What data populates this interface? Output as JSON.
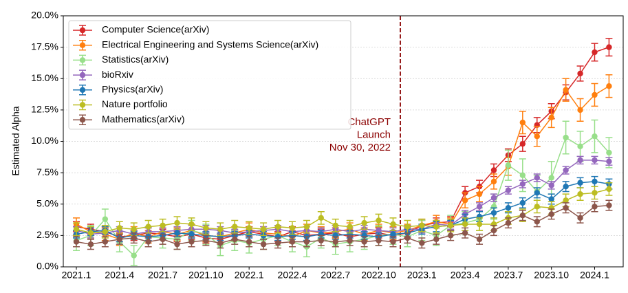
{
  "chart_data": {
    "type": "line",
    "ylabel": "Estimated Alpha",
    "annotation": [
      "ChatGPT",
      "Launch",
      "Nov 30, 2022"
    ],
    "categories": [
      "2021.1",
      null,
      null,
      "2021.4",
      null,
      null,
      "2021.7",
      null,
      null,
      "2021.10",
      null,
      null,
      "2022.1",
      null,
      null,
      "2022.4",
      null,
      null,
      "2022.7",
      null,
      null,
      "2022.10",
      null,
      null,
      "2023.1",
      null,
      null,
      "2023.4",
      null,
      null,
      "2023.7",
      null,
      null,
      "2023.10",
      null,
      null,
      "2024.1",
      null
    ],
    "ylim": [
      0,
      20
    ],
    "yticks": [
      {
        "value": 0,
        "label": "0.0%"
      },
      {
        "value": 2.5,
        "label": "2.5%"
      },
      {
        "value": 5,
        "label": "5.0%"
      },
      {
        "value": 7.5,
        "label": "7.5%"
      },
      {
        "value": 10,
        "label": "10.0%"
      },
      {
        "value": 12.5,
        "label": "12.5%"
      },
      {
        "value": 15,
        "label": "15.0%"
      },
      {
        "value": 17.5,
        "label": "17.5%"
      },
      {
        "value": 20,
        "label": "20.0%"
      }
    ],
    "grid": true,
    "legend": "upper left",
    "series": [
      {
        "name": "Computer Science(arXiv)",
        "color": "#d62728",
        "values": [
          3.2,
          3.0,
          2.8,
          2.4,
          2.5,
          2.7,
          2.6,
          2.4,
          2.6,
          2.3,
          2.2,
          2.5,
          2.8,
          2.6,
          2.4,
          2.8,
          2.5,
          2.6,
          2.7,
          2.4,
          2.6,
          2.7,
          2.5,
          2.7,
          3.3,
          3.5,
          3.6,
          5.9,
          6.4,
          7.7,
          8.9,
          9.8,
          11.3,
          12.4,
          13.9,
          15.4,
          17.1,
          17.5
        ],
        "errors": [
          0.4,
          0.4,
          0.4,
          0.4,
          0.4,
          0.4,
          0.4,
          0.4,
          0.4,
          0.4,
          0.4,
          0.4,
          0.4,
          0.4,
          0.4,
          0.4,
          0.4,
          0.4,
          0.4,
          0.4,
          0.4,
          0.4,
          0.4,
          0.4,
          0.4,
          0.4,
          0.4,
          0.5,
          0.5,
          0.5,
          0.5,
          0.6,
          0.6,
          0.6,
          0.6,
          0.6,
          0.7,
          0.7
        ]
      },
      {
        "name": "Electrical Engineering and Systems Science(arXiv)",
        "color": "#ff7f0e",
        "values": [
          3.4,
          2.8,
          2.6,
          2.2,
          2.7,
          2.4,
          2.8,
          2.6,
          2.9,
          2.5,
          2.4,
          2.7,
          3.0,
          2.7,
          2.6,
          2.4,
          2.9,
          2.7,
          2.8,
          3.0,
          2.6,
          2.9,
          2.7,
          2.9,
          3.3,
          3.6,
          3.4,
          5.3,
          5.8,
          6.8,
          8.0,
          11.5,
          10.4,
          11.9,
          14.1,
          12.5,
          13.7,
          14.4
        ],
        "errors": [
          0.5,
          0.5,
          0.5,
          0.5,
          0.5,
          0.5,
          0.5,
          0.5,
          0.5,
          0.5,
          0.5,
          0.5,
          0.5,
          0.5,
          0.5,
          0.5,
          0.5,
          0.5,
          0.5,
          0.5,
          0.5,
          0.5,
          0.5,
          0.5,
          0.5,
          0.5,
          0.5,
          0.6,
          0.6,
          0.6,
          0.7,
          0.9,
          0.8,
          0.8,
          0.9,
          0.9,
          0.9,
          0.9
        ]
      },
      {
        "name": "Statistics(arXiv)",
        "color": "#98df8a",
        "values": [
          2.1,
          2.5,
          3.8,
          2.0,
          0.9,
          2.4,
          2.3,
          2.2,
          2.9,
          2.6,
          1.7,
          2.1,
          1.9,
          2.2,
          2.5,
          2.0,
          1.6,
          2.3,
          1.8,
          2.0,
          2.2,
          2.5,
          2.6,
          2.4,
          2.9,
          2.5,
          3.3,
          3.5,
          3.8,
          4.8,
          8.1,
          7.3,
          6.0,
          7.1,
          10.3,
          9.6,
          10.4,
          9.1
        ],
        "errors": [
          0.8,
          0.8,
          0.8,
          0.8,
          0.8,
          0.8,
          0.8,
          0.8,
          0.8,
          0.8,
          0.8,
          0.8,
          0.8,
          0.8,
          0.8,
          0.8,
          0.8,
          0.8,
          0.8,
          0.8,
          0.8,
          0.8,
          0.8,
          0.8,
          0.8,
          0.8,
          0.8,
          0.9,
          0.9,
          1.0,
          1.2,
          1.3,
          1.3,
          1.3,
          1.3,
          1.2,
          1.3,
          1.2
        ]
      },
      {
        "name": "bioRxiv",
        "color": "#9467bd",
        "values": [
          2.9,
          2.6,
          2.7,
          2.9,
          2.6,
          2.8,
          2.8,
          2.9,
          3.0,
          3.0,
          2.9,
          2.7,
          2.8,
          2.9,
          3.0,
          2.8,
          2.9,
          2.8,
          3.0,
          2.8,
          3.0,
          2.9,
          2.8,
          3.0,
          3.0,
          3.4,
          3.3,
          4.2,
          4.8,
          5.5,
          6.1,
          6.6,
          7.1,
          6.5,
          7.7,
          8.5,
          8.5,
          8.4
        ],
        "errors": [
          0.3,
          0.3,
          0.3,
          0.3,
          0.3,
          0.3,
          0.3,
          0.3,
          0.3,
          0.3,
          0.3,
          0.3,
          0.3,
          0.3,
          0.3,
          0.3,
          0.3,
          0.3,
          0.3,
          0.3,
          0.3,
          0.3,
          0.3,
          0.3,
          0.3,
          0.3,
          0.3,
          0.3,
          0.3,
          0.3,
          0.3,
          0.3,
          0.3,
          0.3,
          0.3,
          0.3,
          0.3,
          0.3
        ]
      },
      {
        "name": "Physics(arXiv)",
        "color": "#1f77b4",
        "values": [
          2.6,
          2.8,
          2.9,
          2.3,
          2.5,
          2.4,
          2.5,
          2.7,
          2.6,
          2.5,
          2.4,
          2.5,
          2.6,
          2.5,
          2.4,
          2.5,
          2.4,
          2.6,
          2.5,
          2.6,
          2.5,
          2.4,
          2.6,
          2.7,
          3.0,
          3.2,
          3.3,
          3.8,
          4.0,
          4.3,
          4.7,
          5.1,
          5.9,
          5.4,
          6.4,
          6.7,
          6.8,
          6.6
        ],
        "errors": [
          0.3,
          0.3,
          0.3,
          0.3,
          0.3,
          0.3,
          0.3,
          0.3,
          0.3,
          0.3,
          0.3,
          0.3,
          0.3,
          0.3,
          0.3,
          0.3,
          0.3,
          0.3,
          0.3,
          0.3,
          0.3,
          0.3,
          0.3,
          0.3,
          0.4,
          0.4,
          0.4,
          0.4,
          0.4,
          0.4,
          0.4,
          0.4,
          0.4,
          0.4,
          0.4,
          0.4,
          0.4,
          0.4
        ]
      },
      {
        "name": "Nature portfolio",
        "color": "#bcbd22",
        "values": [
          3.0,
          2.7,
          2.8,
          3.1,
          3.0,
          3.2,
          3.3,
          3.5,
          3.4,
          3.1,
          3.0,
          3.2,
          3.1,
          3.0,
          3.2,
          3.1,
          3.2,
          3.9,
          3.3,
          3.2,
          3.5,
          3.7,
          3.4,
          3.2,
          3.3,
          3.2,
          3.3,
          3.4,
          3.4,
          3.4,
          3.9,
          4.1,
          4.8,
          4.7,
          5.3,
          5.8,
          5.9,
          6.2
        ],
        "errors": [
          0.5,
          0.5,
          0.5,
          0.5,
          0.5,
          0.5,
          0.5,
          0.5,
          0.5,
          0.5,
          0.5,
          0.5,
          0.5,
          0.5,
          0.5,
          0.5,
          0.5,
          0.5,
          0.5,
          0.5,
          0.5,
          0.5,
          0.5,
          0.5,
          0.5,
          0.5,
          0.5,
          0.5,
          0.5,
          0.5,
          0.5,
          0.5,
          0.5,
          0.5,
          0.5,
          0.5,
          0.5,
          0.5
        ]
      },
      {
        "name": "Mathematics(arXiv)",
        "color": "#8c564b",
        "values": [
          2.0,
          1.8,
          2.0,
          2.2,
          2.3,
          2.0,
          2.2,
          1.8,
          2.0,
          2.1,
          1.9,
          2.2,
          2.0,
          1.8,
          1.9,
          2.0,
          2.0,
          2.1,
          2.0,
          2.1,
          2.0,
          2.1,
          2.0,
          2.3,
          1.9,
          2.2,
          2.5,
          2.7,
          2.2,
          2.9,
          3.5,
          4.1,
          3.6,
          4.2,
          4.7,
          3.9,
          4.8,
          4.9
        ],
        "errors": [
          0.4,
          0.4,
          0.4,
          0.4,
          0.4,
          0.4,
          0.4,
          0.4,
          0.4,
          0.4,
          0.4,
          0.4,
          0.4,
          0.4,
          0.4,
          0.4,
          0.4,
          0.4,
          0.4,
          0.4,
          0.4,
          0.4,
          0.4,
          0.4,
          0.4,
          0.4,
          0.4,
          0.4,
          0.4,
          0.4,
          0.4,
          0.4,
          0.4,
          0.4,
          0.4,
          0.4,
          0.4,
          0.4
        ]
      }
    ]
  }
}
